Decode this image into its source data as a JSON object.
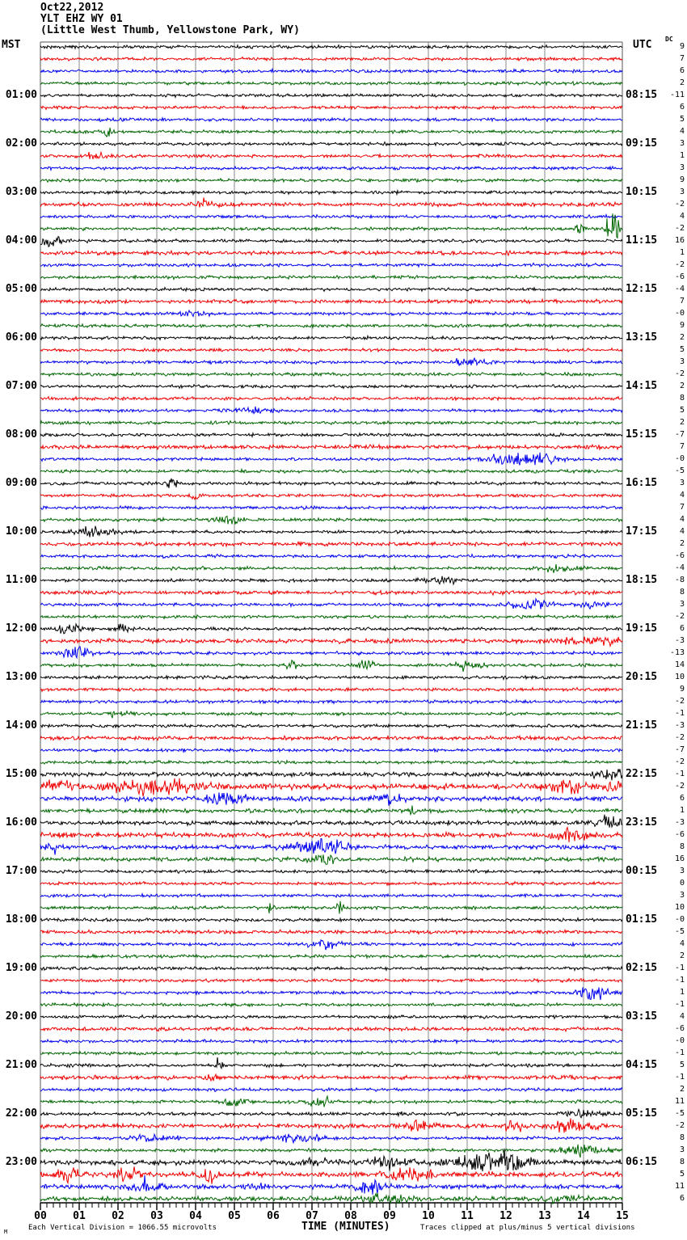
{
  "header": {
    "date": "Oct22,2012",
    "station": "YLT EHZ WY 01",
    "location": "(Little West Thumb, Yellowstone Park, WY)"
  },
  "axes": {
    "left_header": "MST",
    "right_header": "UTC",
    "dc_header": "DC",
    "xlabel": "TIME (MINUTES)"
  },
  "footer": {
    "logo": "M",
    "scale_note": "Each Vertical Division = 1066.55 microvolts",
    "clip_note": "Traces clipped at plus/minus 5 vertical divisions"
  },
  "chart_data": {
    "type": "line",
    "subtype": "helicorder-seismogram",
    "title": "YLT EHZ WY 01 (Little West Thumb, Yellowstone Park, WY) Oct22,2012",
    "xlabel": "TIME (MINUTES)",
    "x_range_minutes": [
      0,
      15
    ],
    "x_tick_labels": [
      "00",
      "01",
      "02",
      "03",
      "04",
      "05",
      "06",
      "07",
      "08",
      "09",
      "10",
      "11",
      "12",
      "13",
      "14",
      "15"
    ],
    "minor_ticks_per_minute": 6,
    "grid": "vertical-gray-every-minute",
    "n_rows": 96,
    "minutes_per_row": 15,
    "rows_per_hour": 4,
    "trace_colors_cycle": [
      "#000000",
      "#ee0000",
      "#0000ee",
      "#006600"
    ],
    "mst_labels": [
      "01:00",
      "02:00",
      "03:00",
      "04:00",
      "05:00",
      "06:00",
      "07:00",
      "08:00",
      "09:00",
      "10:00",
      "11:00",
      "12:00",
      "13:00",
      "14:00",
      "15:00",
      "16:00",
      "17:00",
      "18:00",
      "19:00",
      "20:00",
      "21:00",
      "22:00",
      "23:00"
    ],
    "utc_labels": [
      "08:15",
      "09:15",
      "10:15",
      "11:15",
      "12:15",
      "13:15",
      "14:15",
      "15:15",
      "16:15",
      "17:15",
      "18:15",
      "19:15",
      "20:15",
      "21:15",
      "22:15",
      "23:15",
      "00:15",
      "01:15",
      "02:15",
      "03:15",
      "04:15",
      "05:15",
      "06:15"
    ],
    "hour_label_row_step": 4,
    "dc_values": [
      "9",
      "7",
      "6",
      "2",
      "-11",
      "6",
      "5",
      "4",
      "3",
      "1",
      "3",
      "9",
      "3",
      "-2",
      "4",
      "-2",
      "16",
      "1",
      "-2",
      "-6",
      "-4",
      "7",
      "-0",
      "9",
      "2",
      "5",
      "3",
      "-2",
      "2",
      "8",
      "5",
      "2",
      "-7",
      "7",
      "-0",
      "-5",
      "3",
      "4",
      "7",
      "4",
      "4",
      "2",
      "-6",
      "-4",
      "-8",
      "8",
      "3",
      "-2",
      "6",
      "-3",
      "-13",
      "14",
      "10",
      "9",
      "-2",
      "-1",
      "-3",
      "-2",
      "-7",
      "-2",
      "-1",
      "-2",
      "6",
      "1",
      "-3",
      "-6",
      "8",
      "16",
      "3",
      "0",
      "3",
      "10",
      "-0",
      "-5",
      "4",
      "2",
      "-1",
      "-1",
      "1",
      "-1",
      "4",
      "-6",
      "-0",
      "-1",
      "5",
      "-1",
      "2",
      "11",
      "-5",
      "-2",
      "8",
      "3",
      "8",
      "5",
      "11",
      "6"
    ],
    "row_noise": {
      "13": 1.3,
      "17": 1.25,
      "21": 1.2,
      "33": 1.3,
      "41": 1.2,
      "45": 1.25,
      "49": 1.35,
      "57": 1.2,
      "60": 1.4,
      "61": 1.9,
      "62": 1.5,
      "63": 1.3,
      "64": 1.35,
      "65": 1.6,
      "66": 1.4,
      "67": 1.3,
      "73": 1.15,
      "81": 1.2,
      "85": 1.3,
      "89": 1.5,
      "92": 1.6,
      "93": 1.6,
      "94": 1.45,
      "95": 1.4
    },
    "events": [
      [
        7,
        1.7,
        0.1,
        4
      ],
      [
        9,
        1.5,
        0.25,
        3
      ],
      [
        13,
        4.2,
        0.15,
        3
      ],
      [
        15,
        13.9,
        0.06,
        6
      ],
      [
        15,
        14.75,
        0.1,
        26
      ],
      [
        16,
        0.25,
        0.25,
        5
      ],
      [
        22,
        4.0,
        0.2,
        3
      ],
      [
        26,
        11.0,
        0.3,
        3
      ],
      [
        30,
        5.5,
        0.3,
        3
      ],
      [
        34,
        12.2,
        0.5,
        5
      ],
      [
        34,
        13.0,
        0.3,
        4
      ],
      [
        36,
        3.4,
        0.1,
        6
      ],
      [
        37,
        4.0,
        0.08,
        5
      ],
      [
        39,
        4.9,
        0.25,
        5
      ],
      [
        40,
        1.4,
        0.35,
        4
      ],
      [
        43,
        13.3,
        0.3,
        3
      ],
      [
        44,
        10.3,
        0.35,
        3
      ],
      [
        46,
        12.6,
        0.4,
        4
      ],
      [
        46,
        14.2,
        0.2,
        3.5
      ],
      [
        48,
        0.8,
        0.25,
        4
      ],
      [
        48,
        2.1,
        0.15,
        4
      ],
      [
        49,
        9.0,
        0.08,
        4
      ],
      [
        49,
        14.2,
        0.5,
        3.5
      ],
      [
        50,
        0.95,
        0.25,
        5
      ],
      [
        51,
        6.5,
        0.12,
        4
      ],
      [
        51,
        8.4,
        0.18,
        5
      ],
      [
        51,
        11.0,
        0.25,
        3.5
      ],
      [
        55,
        2.0,
        0.2,
        3
      ],
      [
        60,
        14.7,
        0.25,
        5
      ],
      [
        61,
        0.5,
        0.4,
        4
      ],
      [
        61,
        2.9,
        0.7,
        6
      ],
      [
        61,
        13.6,
        0.35,
        5
      ],
      [
        61,
        14.8,
        0.15,
        5
      ],
      [
        62,
        4.7,
        0.35,
        5
      ],
      [
        62,
        9.0,
        0.25,
        4
      ],
      [
        63,
        9.6,
        0.06,
        5
      ],
      [
        64,
        14.6,
        0.25,
        6
      ],
      [
        65,
        13.7,
        0.25,
        5
      ],
      [
        66,
        0.3,
        0.15,
        4
      ],
      [
        66,
        7.0,
        0.4,
        7
      ],
      [
        66,
        7.7,
        0.15,
        5
      ],
      [
        67,
        7.3,
        0.25,
        5
      ],
      [
        71,
        5.9,
        0.07,
        6
      ],
      [
        71,
        7.7,
        0.08,
        5
      ],
      [
        74,
        7.3,
        0.3,
        4
      ],
      [
        78,
        14.3,
        0.3,
        6
      ],
      [
        84,
        4.6,
        0.05,
        10
      ],
      [
        85,
        4.4,
        0.12,
        4
      ],
      [
        87,
        5.0,
        0.18,
        4
      ],
      [
        87,
        7.2,
        0.2,
        4
      ],
      [
        88,
        9.3,
        0.04,
        6
      ],
      [
        88,
        13.9,
        0.35,
        3
      ],
      [
        89,
        9.8,
        0.25,
        4
      ],
      [
        89,
        12.2,
        0.18,
        4
      ],
      [
        89,
        13.7,
        0.35,
        6
      ],
      [
        90,
        2.9,
        0.35,
        4
      ],
      [
        90,
        6.5,
        0.5,
        3.5
      ],
      [
        91,
        14.0,
        0.35,
        5
      ],
      [
        92,
        7.0,
        0.3,
        3
      ],
      [
        92,
        9.0,
        0.35,
        4
      ],
      [
        92,
        11.8,
        0.7,
        8
      ],
      [
        93,
        0.7,
        0.2,
        5
      ],
      [
        93,
        2.2,
        0.25,
        5
      ],
      [
        93,
        4.3,
        0.2,
        6
      ],
      [
        93,
        9.5,
        0.35,
        5
      ],
      [
        94,
        2.7,
        0.25,
        6
      ],
      [
        94,
        5.5,
        0.2,
        3
      ],
      [
        94,
        8.5,
        0.25,
        6
      ],
      [
        95,
        8.8,
        0.5,
        3
      ],
      [
        95,
        13.5,
        0.3,
        3
      ]
    ],
    "grid_color": "#888888",
    "clip_divisions": 5
  }
}
